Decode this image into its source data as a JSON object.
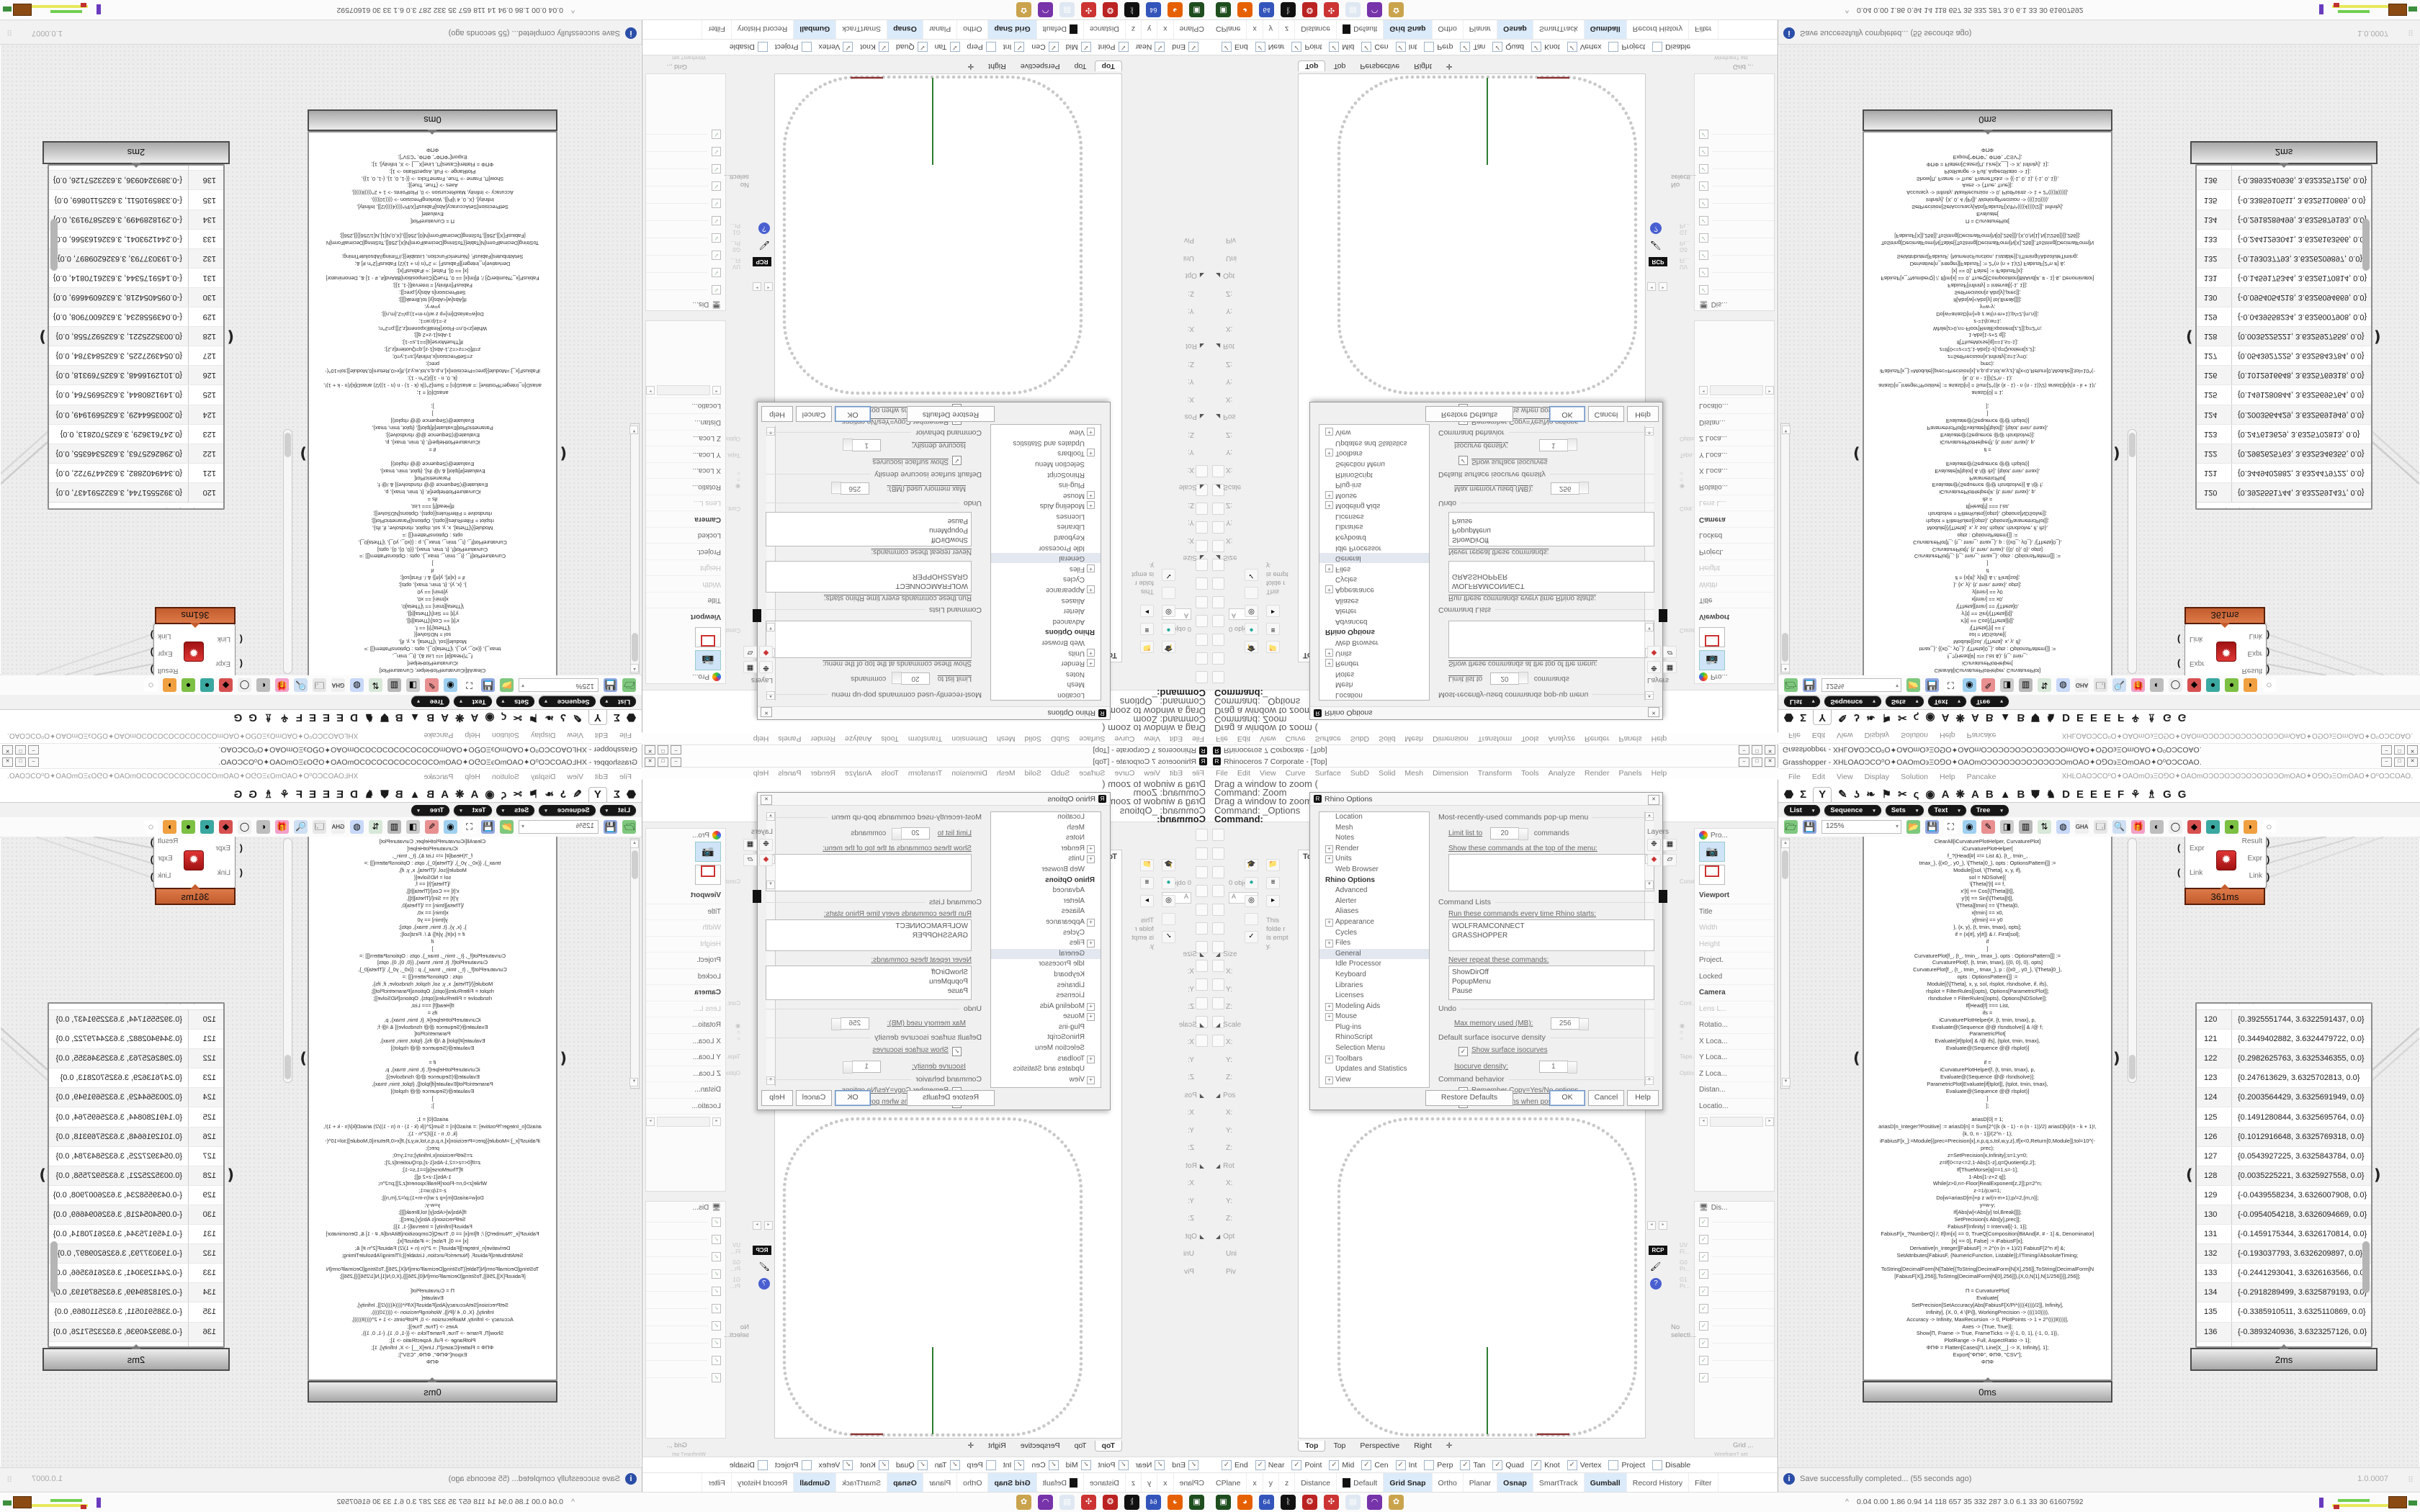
{
  "rhino": {
    "title": "Rhinoceros 7 Corporate - [Top]",
    "window_buttons": [
      "–",
      "□",
      "✕"
    ],
    "menus": [
      "File",
      "Edit",
      "View",
      "Curve",
      "Surface",
      "SubD",
      "Solid",
      "Mesh",
      "Dimension",
      "Transform",
      "Tools",
      "Analyze",
      "Render",
      "Panels",
      "Help"
    ],
    "command_lines": [
      "Drag a window to zoom (",
      "Command: Zoom",
      "Drag a window to zoom (",
      "Command: _Options"
    ],
    "command_prompt": "Command:",
    "left_dock": {
      "objects_label": "0 objects",
      "search_value": "A",
      "folder_note": "This folde r is empt y.",
      "boxedit": [
        {
          "label": "Size",
          "sec": true
        },
        {
          "label": "X:"
        },
        {
          "label": "Y:"
        },
        {
          "label": "Z:"
        },
        {
          "label": "Scale",
          "sec": true
        },
        {
          "label": "X:"
        },
        {
          "label": "Y:"
        },
        {
          "label": "Z:"
        },
        {
          "label": "Pos",
          "sec": true
        },
        {
          "label": "X:"
        },
        {
          "label": "Y:"
        },
        {
          "label": "Z:"
        },
        {
          "label": "Rot",
          "sec": true
        },
        {
          "label": "X:"
        },
        {
          "label": "Y:"
        },
        {
          "label": "Z:"
        },
        {
          "label": "Opt",
          "sec": true
        },
        {
          "label": "Uni"
        },
        {
          "label": "Piv"
        }
      ]
    },
    "options_dialog": {
      "title": "Rhino Options",
      "tree": [
        {
          "label": "Location"
        },
        {
          "label": "Mesh"
        },
        {
          "label": "Notes"
        },
        {
          "label": "Render",
          "plus": true
        },
        {
          "label": "Units",
          "plus": true
        },
        {
          "label": "Web Browser"
        },
        {
          "label": "Rhino Options",
          "bold": true
        },
        {
          "label": "Advanced"
        },
        {
          "label": "Alerter"
        },
        {
          "label": "Aliases"
        },
        {
          "label": "Appearance",
          "plus": true
        },
        {
          "label": "Cycles"
        },
        {
          "label": "Files",
          "plus": true
        },
        {
          "label": "General",
          "sel": true
        },
        {
          "label": "Idle Processor"
        },
        {
          "label": "Keyboard"
        },
        {
          "label": "Libraries"
        },
        {
          "label": "Licenses"
        },
        {
          "label": "Modeling Aids",
          "plus": true
        },
        {
          "label": "Mouse",
          "plus": true
        },
        {
          "label": "Plug-ins"
        },
        {
          "label": "RhinoScript"
        },
        {
          "label": "Selection Menu"
        },
        {
          "label": "Toolbars",
          "plus": true
        },
        {
          "label": "Updates and Statistics"
        },
        {
          "label": "View",
          "plus": true
        }
      ],
      "mru_group": "Most-recently-used commands pop-up menu",
      "limit_pre": "Limit list to",
      "limit_value": "20",
      "limit_post": "commands",
      "show_cmds": "Show these commands at the top of the menu:",
      "cmdlists_group": "Command Lists",
      "run_label": "Run these commands every time Rhino starts:",
      "run_items": [
        "WOLFRAMCONNECT",
        "GRASSHOPPER"
      ],
      "never_label": "Never repeat these commands:",
      "never_items": [
        "ShowDirOff",
        "PopupMenu",
        "Pause"
      ],
      "undo_group": "Undo",
      "undo_label": "Max memory used (MB):",
      "undo_value": "256",
      "iso_group": "Default surface isocurve density",
      "iso_check": "Show surface isocurves",
      "iso_label": "Isocurve density:",
      "iso_value": "1",
      "behavior_group": "Command behavior",
      "behavior_check1": "Remember Copy=Yes/No options",
      "behavior_check2": "Use extrusions when possible",
      "btn_restore": "Restore Defaults",
      "btn_ok": "OK",
      "btn_cancel": "Cancel",
      "btn_help": "Help"
    },
    "viewport": {
      "title": "Top",
      "tabs": [
        {
          "label": "Top",
          "active": true
        },
        {
          "label": "Top"
        },
        {
          "label": "Perspective"
        },
        {
          "label": "Right"
        },
        {
          "label": "✛"
        }
      ],
      "curve_color": "#c9c9c9",
      "green_line_color": "#2e7d32",
      "red_mark_color": "#8c3434"
    },
    "right_dock": {
      "layers_title": "Layers",
      "rcp_label": "RCP",
      "strip_labels": [
        "Constra...",
        "Cont...",
        "Tapa...",
        "Option...",
        "UV Fl...",
        "G0 Pr...",
        "G1 Pr..."
      ],
      "props_title": "Pro...",
      "props_rows": [
        {
          "label": "Viewport",
          "sec": true
        },
        {
          "label": "Title"
        },
        {
          "label": "Width",
          "faint": true
        },
        {
          "label": "Height",
          "faint": true
        },
        {
          "label": "Project.",
          "sec": false
        },
        {
          "label": "Locked"
        },
        {
          "label": "Camera",
          "sec": true
        },
        {
          "label": "Lens L...",
          "faint": true
        },
        {
          "label": "Rotatio..."
        },
        {
          "label": "X Loca..."
        },
        {
          "label": "Y Loca..."
        },
        {
          "label": "Z Loca..."
        },
        {
          "label": "Distan..."
        },
        {
          "label": "Locatio..."
        }
      ],
      "display_title": "Dis...",
      "display_checks": [
        "✓",
        "✓",
        "✓",
        "✓",
        "✓",
        "✓",
        "✓",
        "✓",
        "✓",
        "✓"
      ],
      "no_selection": "No selecti...",
      "grid_label": "Grid ,..",
      "wire_label": "Wirefram? set"
    },
    "osnap": [
      {
        "label": "End",
        "checked": true
      },
      {
        "label": "Near",
        "checked": true
      },
      {
        "label": "Point",
        "checked": true
      },
      {
        "label": "Mid",
        "checked": true
      },
      {
        "label": "Cen",
        "checked": true
      },
      {
        "label": "Int",
        "checked": true
      },
      {
        "label": "Perp",
        "checked": false
      },
      {
        "label": "Tan",
        "checked": true
      },
      {
        "label": "Quad",
        "checked": true
      },
      {
        "label": "Knot",
        "checked": true
      },
      {
        "label": "Vertex",
        "checked": true
      },
      {
        "label": "Project",
        "checked": false
      },
      {
        "label": "Disable",
        "checked": false
      }
    ],
    "status_cells": [
      {
        "label": "CPlane"
      },
      {
        "label": "x"
      },
      {
        "label": "y"
      },
      {
        "label": "z"
      },
      {
        "label": "Distance"
      },
      {
        "label": "Default",
        "swatch": true
      },
      {
        "label": "Grid Snap",
        "hl": true
      },
      {
        "label": "Ortho"
      },
      {
        "label": "Planar"
      },
      {
        "label": "Osnap",
        "hl": true
      },
      {
        "label": "SmartTrack"
      },
      {
        "label": "Gumball",
        "hl": true
      },
      {
        "label": "Record History"
      },
      {
        "label": "Filter"
      }
    ]
  },
  "grasshopper": {
    "title": "Grasshopper - XHĿOAOƆCO⁰O✦OAOmO϶ΞO⅁O✦OAOmOƆOƆOƆOƆOƆOƆOƆOmOAO✦O⅁O϶ΞOmOAO✦O⁰OƆCOAO.",
    "window_buttons": [
      "–",
      "□",
      "✕"
    ],
    "menus": [
      "File",
      "Edit",
      "View",
      "Display",
      "Solution",
      "Help",
      "Pancake"
    ],
    "menu_right_text": "XHĿOAOƆCO⁰O✦OAOmO϶ΞO⅁O✦OAOmOƆOƆOƆOƆOƆOƆOƆOmOAO✦O⅁O϶ΞOmOAO✦O⁰OƆCOAO.",
    "category_tabs": [
      {
        "g": "⬣",
        "name": "tab-params"
      },
      {
        "g": "Σ",
        "name": "tab-maths"
      },
      {
        "g": "Y",
        "name": "tab-sets",
        "active": true
      },
      {
        "g": "✎",
        "name": "tab-vector"
      },
      {
        "g": "ʖ",
        "name": "tab-curve"
      },
      {
        "g": "❧",
        "name": "tab-surface"
      },
      {
        "g": "⚑",
        "name": "tab-mesh"
      },
      {
        "g": "✂",
        "name": "tab-intersect"
      },
      {
        "g": "ς",
        "name": "tab-transform"
      },
      {
        "g": "◉",
        "name": "tab-display"
      },
      {
        "g": "A",
        "name": "tab-plugin-a1"
      },
      {
        "g": "❋",
        "name": "tab-plugin-a2"
      },
      {
        "g": "A",
        "name": "tab-plugin-a3"
      },
      {
        "g": "B",
        "name": "tab-plugin-b1"
      },
      {
        "g": "▲",
        "name": "tab-plugin-b2"
      },
      {
        "g": "B",
        "name": "tab-plugin-b3"
      },
      {
        "g": "⛊",
        "name": "tab-plugin-s"
      },
      {
        "g": "♞",
        "name": "tab-plugin-k"
      },
      {
        "g": "D",
        "name": "tab-plugin-d"
      },
      {
        "g": "E",
        "name": "tab-plugin-e1"
      },
      {
        "g": "E",
        "name": "tab-plugin-e2"
      },
      {
        "g": "E",
        "name": "tab-plugin-e3"
      },
      {
        "g": "F",
        "name": "tab-plugin-f"
      },
      {
        "g": "⚘",
        "name": "tab-plugin-x1"
      },
      {
        "g": "♗",
        "name": "tab-plugin-x2"
      },
      {
        "g": "G",
        "name": "tab-plugin-g1"
      },
      {
        "g": "G",
        "name": "tab-plugin-g2"
      }
    ],
    "subcategories": [
      "List",
      "Sequence",
      "Sets",
      "Text",
      "Tree"
    ],
    "zoom_value": "125%",
    "toolbar_icons": [
      {
        "g": "📂",
        "bg": "#7ec87e",
        "name": "open-file-icon"
      },
      {
        "g": "💾",
        "bg": "#8fa7e0",
        "name": "save-file-icon"
      },
      {
        "g": "⛶",
        "bg": "#ffffff",
        "name": "zoom-extents-icon"
      },
      {
        "g": "◉",
        "bg": "#9fd0f0",
        "name": "preview-eye-icon"
      },
      {
        "g": "✎",
        "bg": "#e89090",
        "name": "sketch-pen-icon"
      },
      {
        "g": "◨",
        "bg": "#cccccc",
        "name": "panel-icon"
      },
      {
        "g": "▥",
        "bg": "#b8b8b8",
        "name": "speaker-icon"
      },
      {
        "g": "⇅",
        "bg": "#d8e8d8",
        "name": "axes-icon"
      },
      {
        "g": "◍",
        "bg": "#c8d8f8",
        "name": "disc-icon"
      },
      {
        "g": "GHA",
        "bg": "#f0f0f0",
        "name": "gha-compiler-icon"
      },
      {
        "g": "🗔",
        "bg": "#e8e8e8",
        "name": "window-icon"
      },
      {
        "g": "🔍",
        "bg": "#cfe0f4",
        "name": "search-icon"
      },
      {
        "g": "🎁",
        "bg": "#f3a0c8",
        "name": "mystery-box-icon"
      },
      {
        "g": "◐",
        "bg": "#bdbdbd",
        "name": "sphere-icon"
      },
      {
        "g": "◯",
        "bg": "#efefef",
        "name": "ring-icon"
      },
      {
        "g": "◆",
        "bg": "#d65050",
        "name": "gem-icon"
      },
      {
        "g": "●",
        "bg": "#3aa8a0",
        "name": "teal-ball-icon"
      },
      {
        "g": "●",
        "bg": "#7cc044",
        "name": "green-ball-icon"
      },
      {
        "g": "◗",
        "bg": "#f0a040",
        "name": "orange-ball-icon"
      },
      {
        "g": "◌",
        "bg": "#ffffff",
        "name": "selection-lasso-icon"
      }
    ],
    "code_panel": {
      "lines": [
        "ClearAll[iCurvaturePlotHelper, CurvaturePlot]",
        "iCurvaturePlotHelper[",
        "f_?(Head[#] =!= List &), {t_, tmin_,",
        "tmax_}, {{x0_, y0_}, \\[Theta]0_}, opts : OptionsPattern[]] :=",
        "Module[{sol, \\[Theta], x, y, if},",
        "sol = NDSolve[{",
        "\\[Theta]'[t] == f,",
        "x'[t] == Cos[\\[Theta][t]],",
        "y'[t] == Sin[\\[Theta][t]],",
        "\\[Theta][tmin] == \\[Theta]0,",
        "x[tmin] == x0,",
        "y[tmin] == y0",
        "}, {x, y}, {t, tmin, tmax}, opts];",
        "if = {x[#], y[#]} & /. First[sol];",
        "if",
        "]",
        "CurvaturePlot[f_, {t_, tmin_, tmax_}, opts : OptionsPattern[]] :=",
        "CurvaturePlot[f, {t, tmin, tmax}, {{0, 0}, 0}, opts]",
        "CurvaturePlot[f_, {t_, tmin_, tmax_}, p : {{x0_, y0_}, \\[Theta]0_},",
        "opts : OptionsPattern[]] :=",
        "Module[{\\[Theta], x, y, sol, rlsplot, rlsndsolve, if, ifs},",
        "rlsplot = FilterRules[{opts}, Options[ParametricPlot]];",
        "rlsndsolve = FilterRules[{opts}, Options[NDSolve]];",
        "If[Head[f] === List,",
        "ifs =",
        "iCurvaturePlotHelper[#, {t, tmin, tmax}, p,",
        "Evaluate@(Sequence @@ rlsndsolve)] & /@ f;",
        "ParametricPlot[",
        "Evaluate[#[tplot] & /@ ifs], {tplot, tmin, tmax},",
        "Evaluate@(Sequence @@ rlsplot)]",
        "",
        "if =",
        "iCurvaturePlotHelper[f, {t, tmin, tmax}, p,",
        "Evaluate@(Sequence @@ rlsndsolve)];",
        "ParametricPlot[Evaluate[if[tplot]], {tplot, tmin, tmax},",
        "Evaluate@(Sequence @@ rlsplot)]",
        "]",
        "];",
        "",
        "ariasD[0] = 1;",
        "ariasD[n_Integer?Positive] := ariasD[n] = Sum[2^((k (k - 1) - n (n - 1))/2) ariasD[k]/(n - k + 1)!,",
        "{k, 0, n - 1}]/(2^n - 1);",
        "iFabiusF[x_]:=Module[{prec=Precision[x],n,p,q,s,tol,w,y,z},If[x<0,Return[0,Module]];tol=10^(-",
        "prec);",
        "z=SetPrecision[x,Infinity];s=1;y=0;",
        "z=If[0<=z<=2,1-Abs[1-z],q=Quotient[z,2];",
        "If[ThueMorse[q]==1,s=-1];",
        "1-Abs[1-z+2 q]];",
        "While[z>0,n=-Floor[RealExponent[z,2]];p=2^n;",
        "z-=1/p;w=1;",
        "Do[w=ariasD[m]+p z w/(n-m+1);p/=2,{m,n}];",
        "y=w-y;",
        "If[Abs[w]<Abs[y] tol,Break[]]];",
        "SetPrecision[s Abs[y],prec]];",
        "FabiusF[Infinity] = Interval[{-1, 1}];",
        "FabiusF[x_?NumberQ] /; If[Im[x] == 0, TrueQ[Composition[BitAnd[#, # - 1] &, Denominator]",
        "[x] == 0], False] := iFabiusF[x];",
        "Derivative[n_Integer][FabiusF] := 2^(n (n + 1)/2) FabiusF[2^n #] &;",
        "SetAttributes[FabiusF, {NumericFunction, Listable}];//Timing//AbsoluteTiming;",
        "",
        "ToString[DecimalForm[N[Table[{ToString[DecimalForm[N[X],256]],ToString[DecimalForm[N",
        "[FabiusF[X]],256]],ToString[DecimalForm[N[0],256]]},{X,0,N[1],N[1/256]}]],256]];",
        "",
        "Π = CurvaturePlot[",
        "Evaluate[",
        "SetPrecision[SetAccuracy[Abs[FabiusF[X/Pi*((((4))))/2]], Infinity],",
        "Infinity], {X, 0, 4 \\[Pi]}, WorkingPrecision -> ((((10)))),",
        "Accuracy -> Infinity, MaxRecursion -> 0, PlotPoints -> 1 + 2^((((8))))],",
        "Axes -> {True, True}];",
        "Show[Π, Frame -> True, FrameTicks -> {{-1, 0, 1}, {-1, 0, 1}},",
        "PlotRange -> Full, AspectRatio -> 1];",
        "ΦΠΦ = Flatten[Cases[Π, Line[X__] -> X, Infinity], 1];",
        "Export[\"ΦΠΦ\", ΦΠΦ, \"CSV\"];",
        "ΦΠΦ"
      ],
      "time": "0ms"
    },
    "expr_component": {
      "inputs": [
        "Expr",
        "Link"
      ],
      "outputs": [
        "Result",
        "Expr",
        "Link"
      ],
      "time": "361ms",
      "accent": "#c35c2e"
    },
    "data_panel": {
      "rows": [
        {
          "i": "120",
          "v": "{0.3925551744, 3.6322591437, 0.0}"
        },
        {
          "i": "121",
          "v": "{0.3449402882, 3.6324479722, 0.0}"
        },
        {
          "i": "122",
          "v": "{0.2982625763, 3.6325346355, 0.0}"
        },
        {
          "i": "123",
          "v": "{0.247613629, 3.6325702813, 0.0}"
        },
        {
          "i": "124",
          "v": "{0.2003564429, 3.6325691949, 0.0}"
        },
        {
          "i": "125",
          "v": "{0.1491280844, 3.6325695764, 0.0}"
        },
        {
          "i": "126",
          "v": "{0.1012916648, 3.6325769318, 0.0}"
        },
        {
          "i": "127",
          "v": "{0.0543927225, 3.6325843784, 0.0}"
        },
        {
          "i": "128",
          "v": "{0.0035225221, 3.6325927558, 0.0}"
        },
        {
          "i": "129",
          "v": "{-0.0439558234, 3.6326007908, 0.0}"
        },
        {
          "i": "130",
          "v": "{-0.0954054218, 3.6326094669, 0.0}"
        },
        {
          "i": "131",
          "v": "{-0.1459175344, 3.6326170814, 0.0}"
        },
        {
          "i": "132",
          "v": "{-0.193037793, 3.6326209897, 0.0}"
        },
        {
          "i": "133",
          "v": "{-0.2441293041, 3.6326163566, 0.0}"
        },
        {
          "i": "134",
          "v": "{-0.2918289499, 3.6325879193, 0.0}"
        },
        {
          "i": "135",
          "v": "{-0.3385910511, 3.6325110869, 0.0}"
        },
        {
          "i": "136",
          "v": "{-0.3893240936, 3.6323257126, 0.0}"
        },
        {
          "i": "137",
          "v": "{-0.4366640544, 3.6319882257, 0.0}"
        }
      ],
      "time": "2ms"
    },
    "status_left": "Save successfully completed... (55 seconds ago)",
    "status_right": "1.0.0007"
  },
  "taskbar": {
    "icons": [
      {
        "g": "▣",
        "bg": "#1e4d1e",
        "name": "taskbar-terminal-icon"
      },
      {
        "g": "◕",
        "bg": "#e66000",
        "name": "taskbar-firefox-icon"
      },
      {
        "g": "64",
        "bg": "#3355bb",
        "name": "taskbar-floppy-icon"
      },
      {
        "g": "ᚱ",
        "bg": "#111111",
        "name": "taskbar-rhino-icon"
      },
      {
        "g": "❂",
        "bg": "#bb2222",
        "name": "taskbar-red-badge-icon"
      },
      {
        "g": "✣",
        "bg": "#cc3333",
        "name": "taskbar-red-gear-icon"
      },
      {
        "g": "▤",
        "bg": "#dfe8f2",
        "name": "taskbar-notepad-icon"
      },
      {
        "g": "◠",
        "bg": "#7733aa",
        "name": "taskbar-cam-icon"
      },
      {
        "g": "✿",
        "bg": "#caa34d",
        "name": "taskbar-palette-icon"
      }
    ],
    "tray_collapse": "^",
    "stats": "0.04 0.00 1.86 0.94   14   118  657   35   332  287   3.0   6.1   33   30  61607592"
  }
}
